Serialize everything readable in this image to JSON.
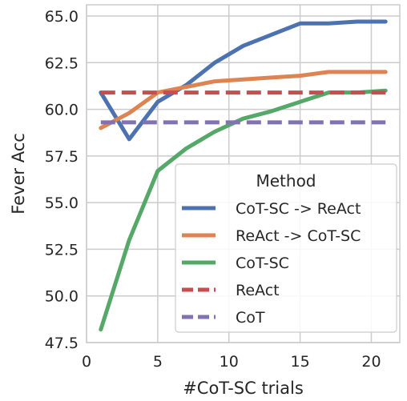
{
  "chart_data": {
    "type": "line",
    "xlabel": "#CoT-SC trials",
    "ylabel": "Fever Acc",
    "xlim": [
      0,
      22
    ],
    "ylim": [
      47.5,
      65.6
    ],
    "x_ticks": [
      0,
      5,
      10,
      15,
      20
    ],
    "x_tick_labels": [
      "0",
      "5",
      "10",
      "15",
      "20"
    ],
    "y_ticks": [
      47.5,
      50.0,
      52.5,
      55.0,
      57.5,
      60.0,
      62.5,
      65.0
    ],
    "y_tick_labels": [
      "47.5",
      "50.0",
      "52.5",
      "55.0",
      "57.5",
      "60.0",
      "62.5",
      "65.0"
    ],
    "grid": true,
    "legend": {
      "title": "Method",
      "position": "lower-right"
    },
    "series": [
      {
        "name": "CoT-SC -> ReAct",
        "color": "#4c72b0",
        "style": "solid",
        "x": [
          1,
          3,
          5,
          7,
          9,
          11,
          13,
          15,
          17,
          19,
          21
        ],
        "y": [
          60.9,
          58.4,
          60.4,
          61.3,
          62.5,
          63.4,
          64.0,
          64.6,
          64.6,
          64.7,
          64.7
        ]
      },
      {
        "name": "ReAct -> CoT-SC",
        "color": "#dd8452",
        "style": "solid",
        "x": [
          1,
          3,
          5,
          7,
          9,
          11,
          13,
          15,
          17,
          19,
          21
        ],
        "y": [
          59.0,
          59.8,
          60.9,
          61.2,
          61.5,
          61.6,
          61.7,
          61.8,
          62.0,
          62.0,
          62.0
        ]
      },
      {
        "name": "CoT-SC",
        "color": "#55a868",
        "style": "solid",
        "x": [
          1,
          3,
          5,
          7,
          9,
          11,
          13,
          15,
          17,
          19,
          21
        ],
        "y": [
          48.2,
          53.0,
          56.7,
          57.9,
          58.8,
          59.5,
          59.9,
          60.4,
          60.9,
          60.9,
          61.0
        ]
      },
      {
        "name": "ReAct",
        "color": "#c44e52",
        "style": "dashed",
        "x": [
          1,
          21
        ],
        "y": [
          60.9,
          60.9
        ]
      },
      {
        "name": "CoT",
        "color": "#8172b3",
        "style": "dashed",
        "x": [
          1,
          21
        ],
        "y": [
          59.3,
          59.3
        ]
      }
    ]
  }
}
